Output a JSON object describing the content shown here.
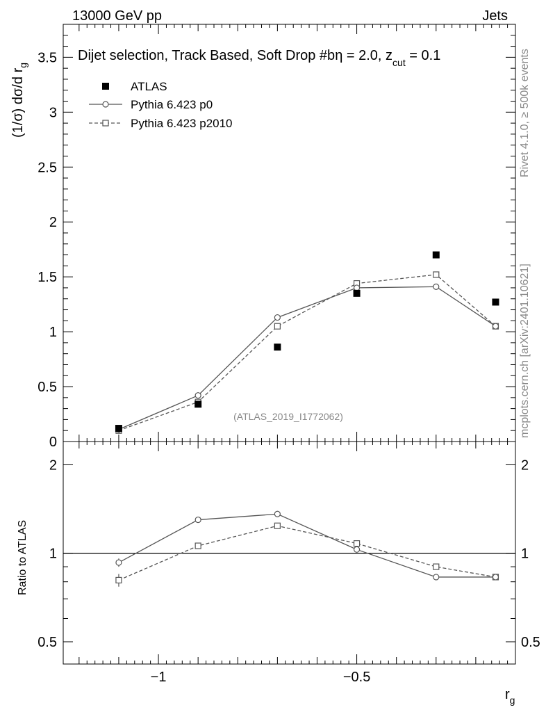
{
  "header": {
    "left": "13000 GeV pp",
    "right": "Jets",
    "subtitle_main": "Dijet selection, Track Based, Soft Drop #b",
    "subtitle_eta": "η = 2.0, z",
    "subtitle_sub": "cut",
    "subtitle_end": " = 0.1"
  },
  "side": {
    "rivet": "Rivet 4.1.0, ≥ 500k events",
    "mcplots": "mcplots.cern.ch [arXiv:2401.10621]"
  },
  "watermark": "(ATLAS_2019_I1772062)",
  "chart_data": [
    {
      "type": "line",
      "panel": "main",
      "ylabel_main": "(1/σ) dσ/d r",
      "ylabel_sub": "g",
      "xlim": [
        -1.24,
        -0.1
      ],
      "ylim": [
        0,
        3.8
      ],
      "yticks": [
        0,
        0.5,
        1,
        1.5,
        2,
        2.5,
        3,
        3.5
      ],
      "ytick_labels": [
        "0",
        "0.5",
        "1",
        "1.5",
        "2",
        "2.5",
        "3",
        "3.5"
      ],
      "x": [
        -1.1,
        -0.9,
        -0.7,
        -0.5,
        -0.3,
        -0.15
      ],
      "legend": [
        "ATLAS",
        "Pythia 6.423 p0",
        "Pythia 6.423 p2010"
      ],
      "series": [
        {
          "name": "ATLAS",
          "style": "marker-square-filled",
          "values": [
            0.12,
            0.34,
            0.86,
            1.35,
            1.7,
            1.27
          ]
        },
        {
          "name": "Pythia 6.423 p0",
          "style": "line-circle",
          "values": [
            0.11,
            0.42,
            1.13,
            1.4,
            1.41,
            1.05
          ]
        },
        {
          "name": "Pythia 6.423 p2010",
          "style": "dashed-square",
          "values": [
            0.1,
            0.36,
            1.05,
            1.44,
            1.52,
            1.05
          ]
        }
      ]
    },
    {
      "type": "line",
      "panel": "ratio",
      "ylabel": "Ratio to ATLAS",
      "xlabel_main": "r",
      "xlabel_sub": "g",
      "yscale": "log",
      "ylim": [
        0.42,
        2.4
      ],
      "yticks": [
        0.5,
        1,
        2
      ],
      "ytick_labels": [
        "0.5",
        "1",
        "2"
      ],
      "xticks": [
        -1,
        -0.5
      ],
      "xtick_labels": [
        "−1",
        "−0.5"
      ],
      "x": [
        -1.1,
        -0.9,
        -0.7,
        -0.5,
        -0.3,
        -0.15
      ],
      "series": [
        {
          "name": "Pythia 6.423 p0",
          "style": "line-circle",
          "values": [
            0.93,
            1.3,
            1.36,
            1.03,
            0.83,
            0.83
          ]
        },
        {
          "name": "Pythia 6.423 p2010",
          "style": "dashed-square",
          "values": [
            0.81,
            1.06,
            1.24,
            1.08,
            0.9,
            0.83
          ]
        }
      ],
      "errors": {
        "Pythia 6.423 p0": [
          0.03,
          0,
          0,
          0,
          0,
          0
        ],
        "Pythia 6.423 p2010": [
          0.04,
          0,
          0,
          0,
          0,
          0
        ]
      }
    }
  ]
}
